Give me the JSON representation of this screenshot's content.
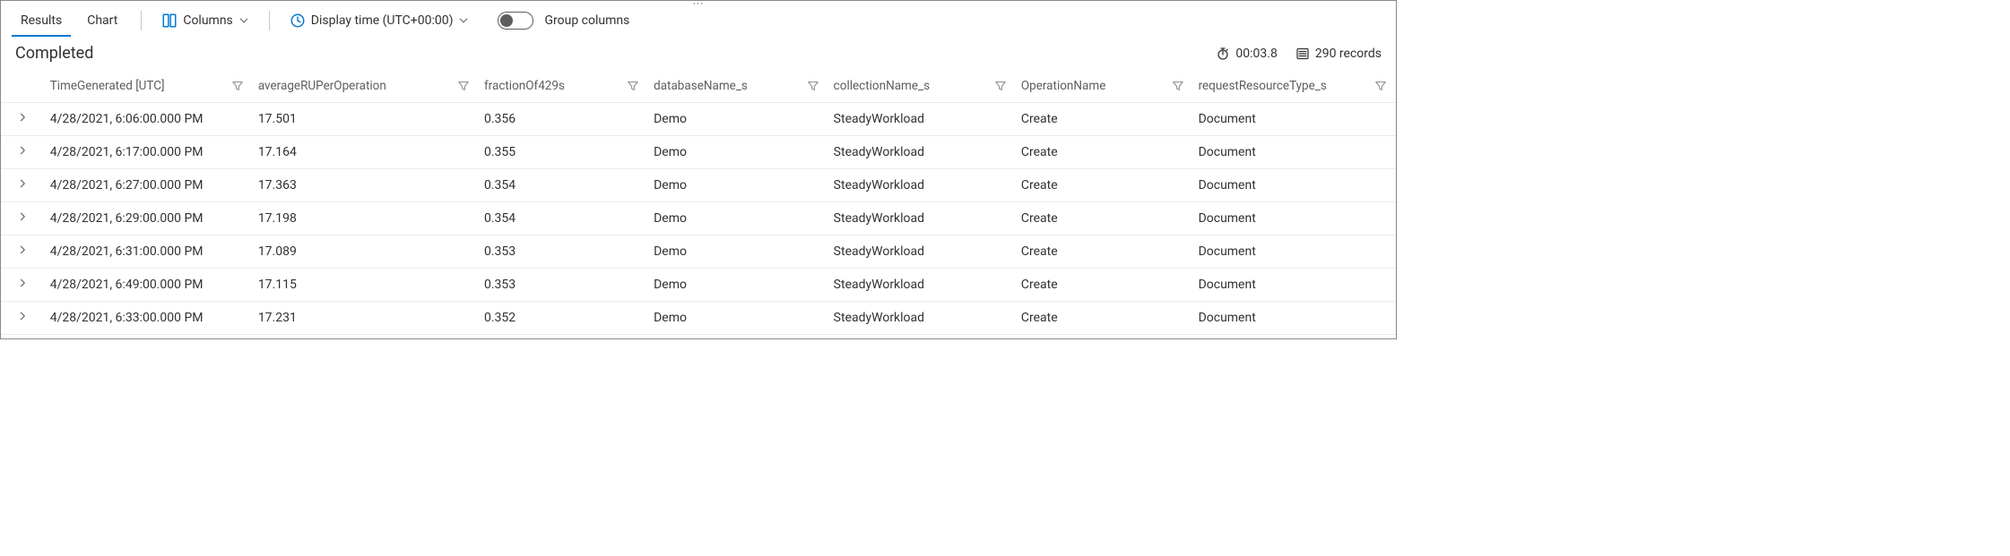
{
  "colors": {
    "brand": "#0078d4",
    "border": "#8a8886",
    "row_border": "#edebe9",
    "muted": "#605e5c",
    "text": "#323130",
    "bg": "#ffffff"
  },
  "toolbar": {
    "tabs": {
      "results": "Results",
      "chart": "Chart",
      "active": "results"
    },
    "columns_btn": "Columns",
    "display_time_btn": "Display time (UTC+00:00)",
    "group_columns_label": "Group columns",
    "group_columns_on": false
  },
  "status": {
    "label": "Completed",
    "elapsed": "00:03.8",
    "records": "290 records"
  },
  "columns": [
    {
      "key": "TimeGenerated",
      "label": "TimeGenerated [UTC]"
    },
    {
      "key": "averageRUPerOperation",
      "label": "averageRUPerOperation"
    },
    {
      "key": "fractionOf429s",
      "label": "fractionOf429s"
    },
    {
      "key": "databaseName_s",
      "label": "databaseName_s"
    },
    {
      "key": "collectionName_s",
      "label": "collectionName_s"
    },
    {
      "key": "OperationName",
      "label": "OperationName"
    },
    {
      "key": "requestResourceType_s",
      "label": "requestResourceType_s"
    }
  ],
  "rows": [
    {
      "TimeGenerated": "4/28/2021, 6:06:00.000 PM",
      "averageRUPerOperation": "17.501",
      "fractionOf429s": "0.356",
      "databaseName_s": "Demo",
      "collectionName_s": "SteadyWorkload",
      "OperationName": "Create",
      "requestResourceType_s": "Document"
    },
    {
      "TimeGenerated": "4/28/2021, 6:17:00.000 PM",
      "averageRUPerOperation": "17.164",
      "fractionOf429s": "0.355",
      "databaseName_s": "Demo",
      "collectionName_s": "SteadyWorkload",
      "OperationName": "Create",
      "requestResourceType_s": "Document"
    },
    {
      "TimeGenerated": "4/28/2021, 6:27:00.000 PM",
      "averageRUPerOperation": "17.363",
      "fractionOf429s": "0.354",
      "databaseName_s": "Demo",
      "collectionName_s": "SteadyWorkload",
      "OperationName": "Create",
      "requestResourceType_s": "Document"
    },
    {
      "TimeGenerated": "4/28/2021, 6:29:00.000 PM",
      "averageRUPerOperation": "17.198",
      "fractionOf429s": "0.354",
      "databaseName_s": "Demo",
      "collectionName_s": "SteadyWorkload",
      "OperationName": "Create",
      "requestResourceType_s": "Document"
    },
    {
      "TimeGenerated": "4/28/2021, 6:31:00.000 PM",
      "averageRUPerOperation": "17.089",
      "fractionOf429s": "0.353",
      "databaseName_s": "Demo",
      "collectionName_s": "SteadyWorkload",
      "OperationName": "Create",
      "requestResourceType_s": "Document"
    },
    {
      "TimeGenerated": "4/28/2021, 6:49:00.000 PM",
      "averageRUPerOperation": "17.115",
      "fractionOf429s": "0.353",
      "databaseName_s": "Demo",
      "collectionName_s": "SteadyWorkload",
      "OperationName": "Create",
      "requestResourceType_s": "Document"
    },
    {
      "TimeGenerated": "4/28/2021, 6:33:00.000 PM",
      "averageRUPerOperation": "17.231",
      "fractionOf429s": "0.352",
      "databaseName_s": "Demo",
      "collectionName_s": "SteadyWorkload",
      "OperationName": "Create",
      "requestResourceType_s": "Document"
    }
  ],
  "icons": {
    "columns": "columns-icon",
    "clock": "clock-icon",
    "stopwatch": "stopwatch-icon",
    "list": "list-icon",
    "chevron_down": "chevron-down-icon",
    "chevron_right": "chevron-right-icon",
    "filter": "filter-icon"
  }
}
